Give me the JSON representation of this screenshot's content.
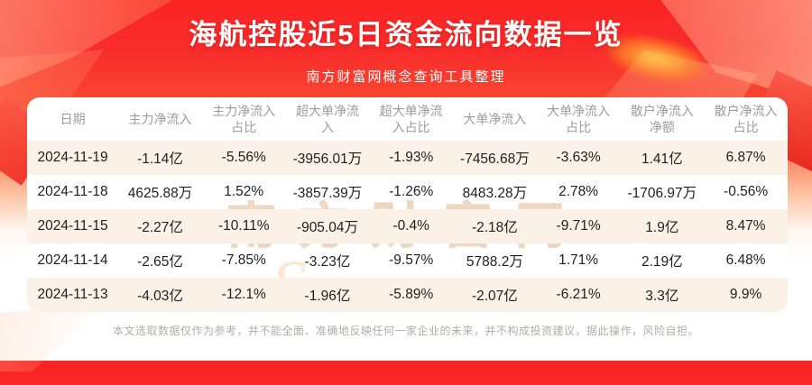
{
  "banner": {
    "title": "海航控股近5日资金流向数据一览",
    "subtitle": "南方财富网概念查询工具整理"
  },
  "chart_data": {
    "type": "table",
    "title": "海航控股近5日资金流向数据一览",
    "columns": [
      "日期",
      "主力净流入",
      "主力净流入占比",
      "超大单净流入",
      "超大单净流入占比",
      "大单净流入",
      "大单净流入占比",
      "散户净流入净额",
      "散户净流入占比"
    ],
    "rows": [
      [
        "2024-11-19",
        "-1.14亿",
        "-5.56%",
        "-3956.01万",
        "-1.93%",
        "-7456.68万",
        "-3.63%",
        "1.41亿",
        "6.87%"
      ],
      [
        "2024-11-18",
        "4625.88万",
        "1.52%",
        "-3857.39万",
        "-1.26%",
        "8483.28万",
        "2.78%",
        "-1706.97万",
        "-0.56%"
      ],
      [
        "2024-11-15",
        "-2.27亿",
        "-10.11%",
        "-905.04万",
        "-0.4%",
        "-2.18亿",
        "-9.71%",
        "1.9亿",
        "8.47%"
      ],
      [
        "2024-11-14",
        "-2.65亿",
        "-7.85%",
        "-3.23亿",
        "-9.57%",
        "5788.2万",
        "1.71%",
        "2.19亿",
        "6.48%"
      ],
      [
        "2024-11-13",
        "-4.03亿",
        "-12.1%",
        "-1.96亿",
        "-5.89%",
        "-2.07亿",
        "-6.21%",
        "3.3亿",
        "9.9%"
      ]
    ]
  },
  "watermark": {
    "cn": "南方财富网",
    "en": "Southmoney.com"
  },
  "footer": {
    "disclaimer": "本文选取数据仅作为参考，并不能全面、准确地反映任何一家企业的未来，并不构成投资建议，据此操作，风险自担。"
  },
  "colors": {
    "banner_red": "#f92c2c",
    "banner_orange": "#fb7a52",
    "card_bg": "#ffffff",
    "row_stripe": "#fbf1e7",
    "header_text": "#9c9c9c",
    "body_text": "#1f1f1f",
    "footer_text": "#b3aca4",
    "watermark": "#d6a370",
    "glow_gold": "#ffcd4b"
  }
}
